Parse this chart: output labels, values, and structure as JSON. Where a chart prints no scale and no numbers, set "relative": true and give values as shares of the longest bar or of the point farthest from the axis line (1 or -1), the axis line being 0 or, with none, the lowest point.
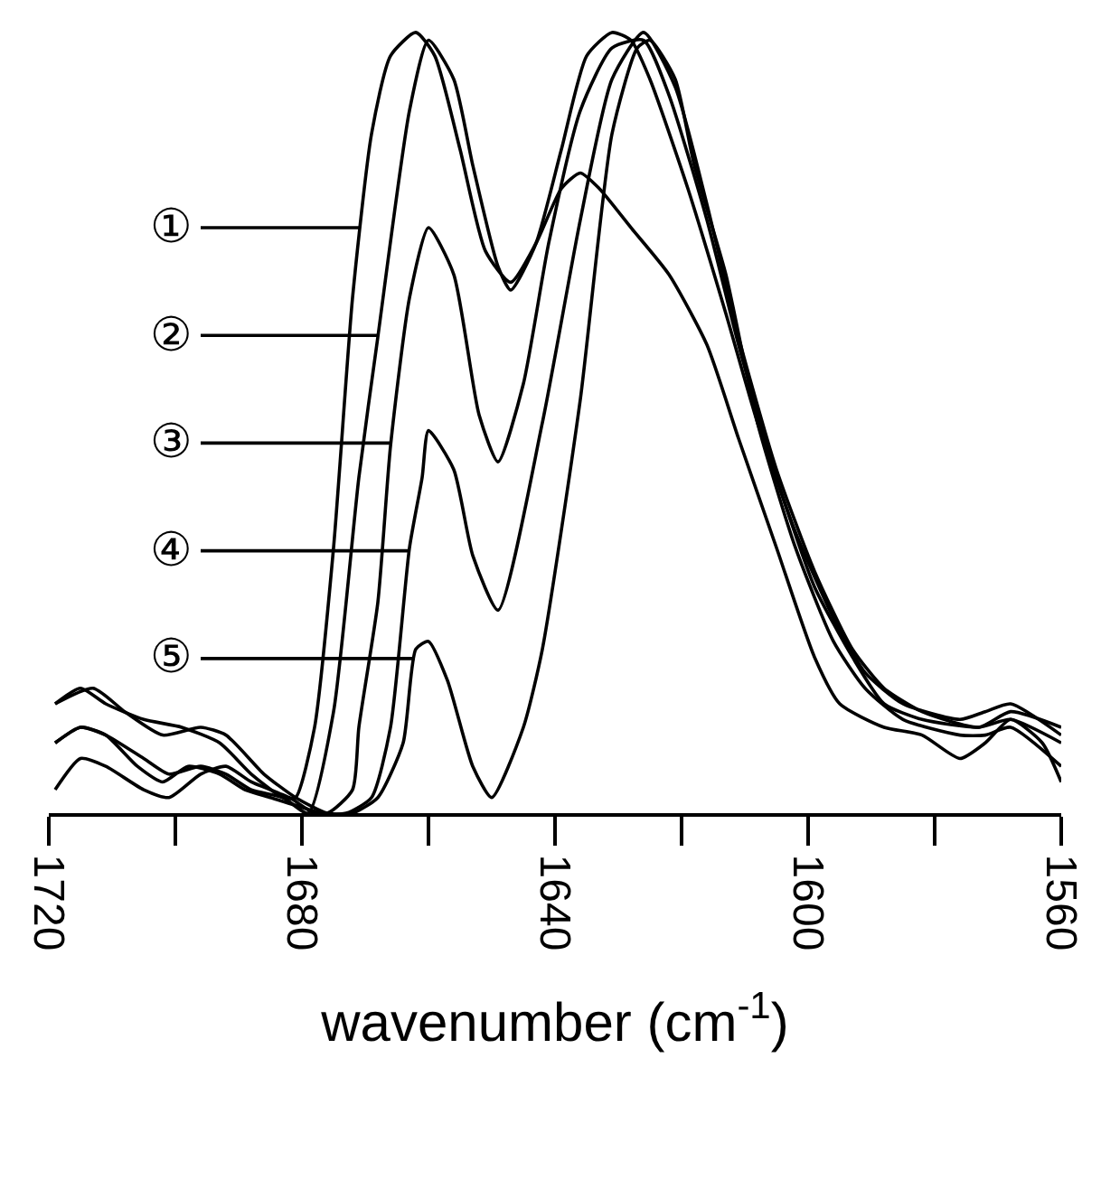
{
  "chart_data": {
    "type": "line",
    "relative": true,
    "xlabel": "wavenumber (cm$^{-1}$)",
    "xlim": [
      1720,
      1560
    ],
    "xticks": [
      1720,
      {
        "value": 1700,
        "label": null
      },
      1680,
      {
        "value": 1660,
        "label": null
      },
      1640,
      {
        "value": 1620,
        "label": null
      },
      1600,
      {
        "value": 1580,
        "label": null
      },
      1560
    ],
    "legend": "left",
    "marker": "none",
    "line_style": "solid",
    "series": [
      {
        "name": "①",
        "color": "#000000",
        "x": [
          1719,
          1715,
          1711,
          1705,
          1699,
          1693,
          1688,
          1683,
          1681,
          1678,
          1675,
          1672,
          1669,
          1666,
          1662,
          1659,
          1655,
          1651,
          1647,
          1643,
          1639,
          1636,
          1633,
          1628,
          1622,
          1616,
          1611,
          1605,
          1599,
          1595,
          1588,
          1582,
          1576,
          1572,
          1568,
          1563,
          1560
        ],
        "values": [
          0.14,
          0.16,
          0.14,
          0.12,
          0.11,
          0.09,
          0.05,
          0.02,
          0.02,
          0.11,
          0.34,
          0.66,
          0.87,
          0.97,
          1.0,
          0.97,
          0.85,
          0.72,
          0.68,
          0.73,
          0.8,
          0.82,
          0.8,
          0.75,
          0.69,
          0.6,
          0.48,
          0.34,
          0.2,
          0.14,
          0.11,
          0.1,
          0.07,
          0.09,
          0.12,
          0.09,
          0.04
        ]
      },
      {
        "name": "②",
        "color": "#000000",
        "x": [
          1719,
          1715,
          1711,
          1705,
          1701,
          1696,
          1692,
          1688,
          1683,
          1679,
          1675,
          1671,
          1668,
          1663,
          1660,
          1656,
          1653,
          1649,
          1647,
          1643,
          1639,
          1635,
          1631,
          1628,
          1625,
          1619,
          1613,
          1608,
          1602,
          1596,
          1591,
          1585,
          1576,
          1572,
          1568,
          1560
        ],
        "values": [
          0.09,
          0.11,
          0.1,
          0.07,
          0.05,
          0.06,
          0.05,
          0.03,
          0.02,
          0.0,
          0.13,
          0.43,
          0.61,
          0.9,
          0.99,
          0.94,
          0.83,
          0.7,
          0.67,
          0.73,
          0.85,
          0.97,
          1.0,
          0.99,
          0.94,
          0.8,
          0.64,
          0.5,
          0.36,
          0.25,
          0.18,
          0.14,
          0.12,
          0.13,
          0.14,
          0.1
        ]
      },
      {
        "name": "③",
        "color": "#000000",
        "x": [
          1719,
          1715,
          1711,
          1706,
          1702,
          1698,
          1693,
          1689,
          1685,
          1681,
          1676,
          1672,
          1671,
          1668,
          1666,
          1663,
          1660,
          1656,
          1652,
          1649,
          1645,
          1641,
          1636,
          1631,
          1626,
          1622,
          1616,
          1611,
          1605,
          1599,
          1593,
          1588,
          1582,
          1573,
          1568,
          1560
        ],
        "values": [
          0.09,
          0.11,
          0.1,
          0.06,
          0.04,
          0.06,
          0.05,
          0.03,
          0.02,
          0.01,
          0.0,
          0.03,
          0.11,
          0.27,
          0.47,
          0.66,
          0.75,
          0.69,
          0.51,
          0.45,
          0.55,
          0.73,
          0.9,
          0.98,
          0.99,
          0.92,
          0.76,
          0.6,
          0.43,
          0.29,
          0.2,
          0.14,
          0.12,
          0.11,
          0.12,
          0.09
        ]
      },
      {
        "name": "④",
        "color": "#000000",
        "x": [
          1719,
          1715,
          1711,
          1705,
          1701,
          1696,
          1692,
          1688,
          1682,
          1678,
          1673,
          1669,
          1666,
          1663,
          1661,
          1660,
          1656,
          1653,
          1649,
          1642,
          1636,
          1631,
          1626,
          1621,
          1616,
          1611,
          1605,
          1599,
          1593,
          1588,
          1582,
          1573,
          1568,
          1560
        ],
        "values": [
          0.03,
          0.07,
          0.06,
          0.03,
          0.02,
          0.05,
          0.06,
          0.04,
          0.02,
          0.0,
          0.0,
          0.02,
          0.11,
          0.34,
          0.43,
          0.49,
          0.44,
          0.33,
          0.26,
          0.5,
          0.76,
          0.94,
          1.0,
          0.93,
          0.78,
          0.61,
          0.44,
          0.31,
          0.21,
          0.16,
          0.13,
          0.11,
          0.13,
          0.11
        ]
      },
      {
        "name": "⑤",
        "color": "#000000",
        "x": [
          1719,
          1713,
          1708,
          1702,
          1696,
          1692,
          1686,
          1681,
          1676,
          1672,
          1668,
          1664,
          1662,
          1660,
          1657,
          1653,
          1650,
          1645,
          1642,
          1636,
          1631,
          1627,
          1625,
          1621,
          1618,
          1613,
          1608,
          1602,
          1596,
          1591,
          1585,
          1576,
          1572,
          1568,
          1560
        ],
        "values": [
          0.14,
          0.16,
          0.13,
          0.1,
          0.11,
          0.1,
          0.05,
          0.02,
          0.0,
          0.0,
          0.02,
          0.09,
          0.21,
          0.22,
          0.17,
          0.06,
          0.02,
          0.11,
          0.21,
          0.53,
          0.87,
          0.98,
          0.99,
          0.94,
          0.83,
          0.69,
          0.5,
          0.34,
          0.22,
          0.16,
          0.12,
          0.1,
          0.1,
          0.11,
          0.06
        ]
      }
    ]
  }
}
